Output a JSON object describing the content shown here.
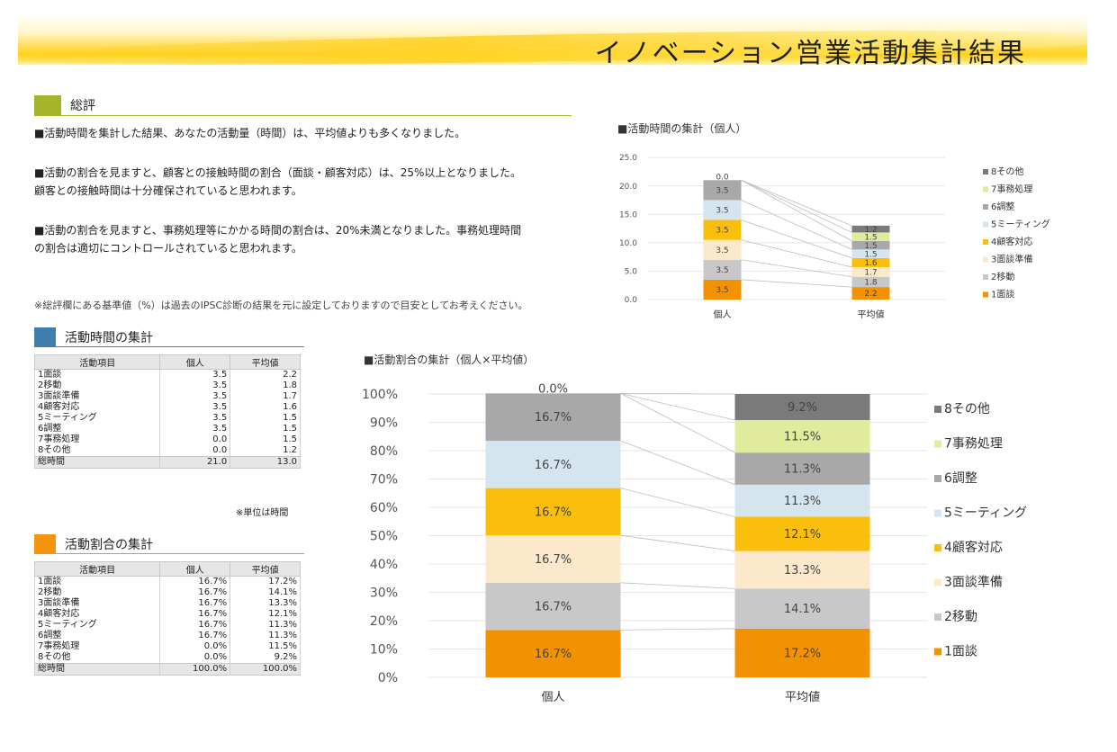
{
  "header": {
    "title": "イノベーション営業活動集計結果"
  },
  "summary": {
    "heading": "総評",
    "paragraphs": [
      "■活動時間を集計した結果、あなたの活動量（時間）は、平均値よりも多くなりました。",
      "■活動の割合を見ますと、顧客との接触時間の割合（面談・顧客対応）は、25%以上となりました。",
      "顧客との接触時間は十分確保されていると思われます。",
      "■活動の割合を見ますと、事務処理等にかかる時間の割合は、20%未満となりました。事務処理時間",
      "の割合は適切にコントロールされていると思われます。"
    ],
    "note": "※総評欄にある基準値（%）は過去のIPSC診断の結果を元に設定しておりますので目安としてお考えください。"
  },
  "time_table": {
    "heading": "活動時間の集計",
    "columns": [
      "活動項目",
      "個人",
      "平均値"
    ],
    "rows": [
      [
        "1面談",
        "3.5",
        "2.2"
      ],
      [
        "2移動",
        "3.5",
        "1.8"
      ],
      [
        "3面談準備",
        "3.5",
        "1.7"
      ],
      [
        "4顧客対応",
        "3.5",
        "1.6"
      ],
      [
        "5ミーティング",
        "3.5",
        "1.5"
      ],
      [
        "6調整",
        "3.5",
        "1.5"
      ],
      [
        "7事務処理",
        "0.0",
        "1.5"
      ],
      [
        "8その他",
        "0.0",
        "1.2"
      ]
    ],
    "total": [
      "総時間",
      "21.0",
      "13.0"
    ],
    "unit_note": "※単位は時間"
  },
  "ratio_table": {
    "heading": "活動割合の集計",
    "columns": [
      "活動項目",
      "個人",
      "平均値"
    ],
    "rows": [
      [
        "1面談",
        "16.7%",
        "17.2%"
      ],
      [
        "2移動",
        "16.7%",
        "14.1%"
      ],
      [
        "3面談準備",
        "16.7%",
        "13.3%"
      ],
      [
        "4顧客対応",
        "16.7%",
        "12.1%"
      ],
      [
        "5ミーティング",
        "16.7%",
        "11.3%"
      ],
      [
        "6調整",
        "16.7%",
        "11.3%"
      ],
      [
        "7事務処理",
        "0.0%",
        "11.5%"
      ],
      [
        "8その他",
        "0.0%",
        "9.2%"
      ]
    ],
    "total": [
      "総時間",
      "100.0%",
      "100.0%"
    ]
  },
  "colors": {
    "summary_accent": "#a5b52a",
    "time_accent": "#3d7fad",
    "ratio_accent": "#f5940f",
    "series": [
      "#f39200",
      "#c8c8c8",
      "#fce9cc",
      "#fbbf0b",
      "#d5e5f0",
      "#a8a8a8",
      "#e0ec9c",
      "#7a7a7a"
    ]
  },
  "chart_data": [
    {
      "type": "bar",
      "title": "■活動時間の集計（個人）",
      "categories": [
        "個人",
        "平均値"
      ],
      "yticks": [
        "0.0",
        "5.0",
        "10.0",
        "15.0",
        "20.0",
        "25.0"
      ],
      "ylim": [
        0,
        25
      ],
      "legend_position": "right",
      "series": [
        {
          "name": "1面談",
          "values": [
            3.5,
            2.2
          ],
          "labels": [
            "3.5",
            "2.2"
          ]
        },
        {
          "name": "2移動",
          "values": [
            3.5,
            1.8
          ],
          "labels": [
            "3.5",
            "1.8"
          ]
        },
        {
          "name": "3面談準備",
          "values": [
            3.5,
            1.7
          ],
          "labels": [
            "3.5",
            "1.7"
          ]
        },
        {
          "name": "4顧客対応",
          "values": [
            3.5,
            1.6
          ],
          "labels": [
            "3.5",
            "1.6"
          ]
        },
        {
          "name": "5ミーティング",
          "values": [
            3.5,
            1.5
          ],
          "labels": [
            "3.5",
            "1.5"
          ]
        },
        {
          "name": "6調整",
          "values": [
            3.5,
            1.5
          ],
          "labels": [
            "3.5",
            "1.5"
          ]
        },
        {
          "name": "7事務処理",
          "values": [
            0.0,
            1.5
          ],
          "labels": [
            "",
            "1.5"
          ]
        },
        {
          "name": "8その他",
          "values": [
            0.0,
            1.2
          ],
          "labels": [
            "0.0",
            "1.2"
          ]
        }
      ]
    },
    {
      "type": "bar",
      "title": "■活動割合の集計（個人×平均値）",
      "categories": [
        "個人",
        "平均値"
      ],
      "yticks": [
        "0%",
        "10%",
        "20%",
        "30%",
        "40%",
        "50%",
        "60%",
        "70%",
        "80%",
        "90%",
        "100%"
      ],
      "ylim": [
        0,
        100
      ],
      "legend_position": "right",
      "series": [
        {
          "name": "1面談",
          "values": [
            16.7,
            17.2
          ],
          "labels": [
            "16.7%",
            "17.2%"
          ]
        },
        {
          "name": "2移動",
          "values": [
            16.7,
            14.1
          ],
          "labels": [
            "16.7%",
            "14.1%"
          ]
        },
        {
          "name": "3面談準備",
          "values": [
            16.7,
            13.3
          ],
          "labels": [
            "16.7%",
            "13.3%"
          ]
        },
        {
          "name": "4顧客対応",
          "values": [
            16.7,
            12.1
          ],
          "labels": [
            "16.7%",
            "12.1%"
          ]
        },
        {
          "name": "5ミーティング",
          "values": [
            16.7,
            11.3
          ],
          "labels": [
            "16.7%",
            "11.3%"
          ]
        },
        {
          "name": "6調整",
          "values": [
            16.7,
            11.3
          ],
          "labels": [
            "16.7%",
            "11.3%"
          ]
        },
        {
          "name": "7事務処理",
          "values": [
            0.0,
            11.5
          ],
          "labels": [
            "",
            "11.5%"
          ]
        },
        {
          "name": "8その他",
          "values": [
            0.0,
            9.2
          ],
          "labels": [
            "0.0%",
            "9.2%"
          ]
        }
      ]
    }
  ]
}
